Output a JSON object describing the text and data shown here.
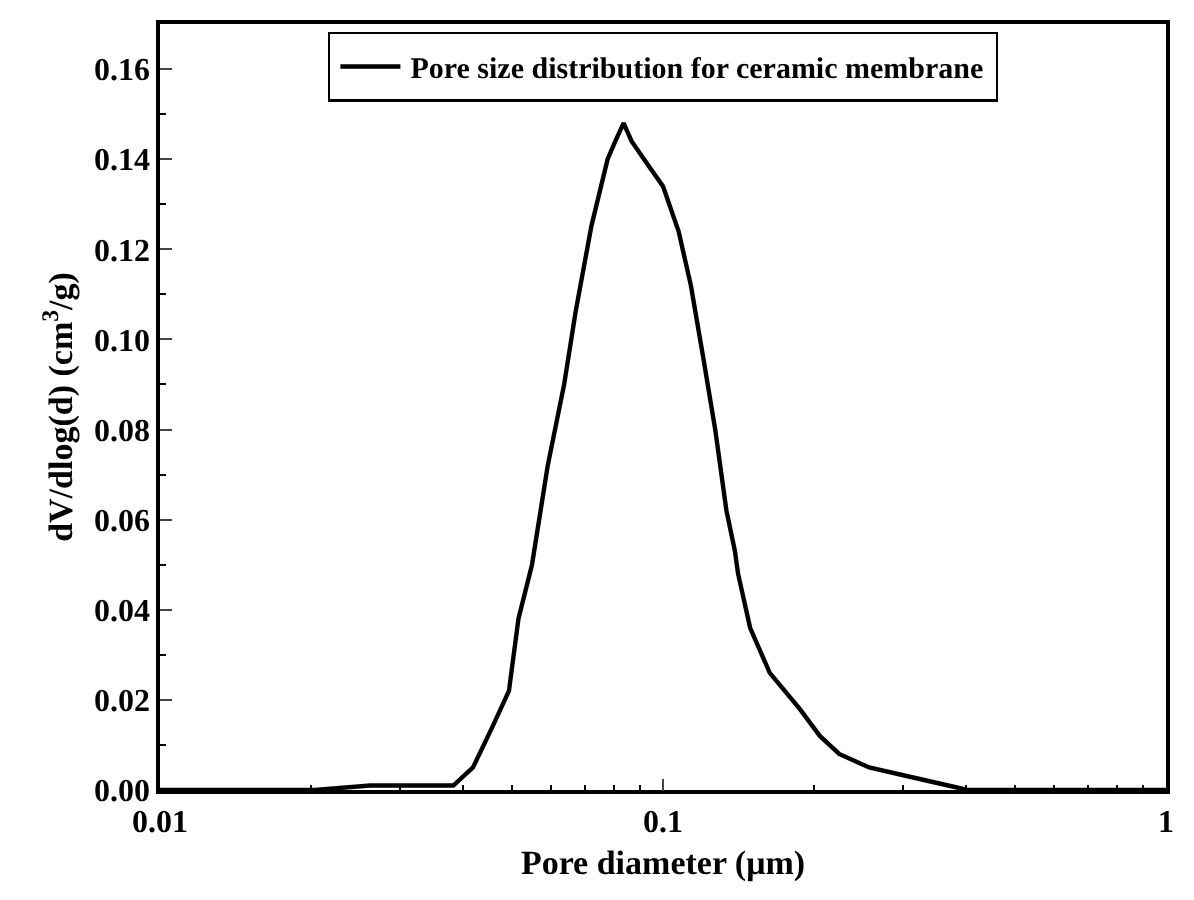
{
  "chart_data": {
    "type": "line",
    "xlabel": "Pore diameter (μm)",
    "ylabel": "dV/dlog(d) (cm$^{3}$/g)",
    "log": "x",
    "xlim": [
      0.01,
      1
    ],
    "xticks": [
      0.01,
      0.1,
      1
    ],
    "ylim": [
      0,
      0.17
    ],
    "yticks": [
      {
        "value": 0,
        "label": "0.00"
      },
      0.02,
      0.04,
      0.06,
      0.08,
      {
        "value": 0.1,
        "label": "0.10"
      },
      0.12,
      0.14,
      0.16
    ],
    "legend": "top",
    "marker": "none",
    "line_style": "solid",
    "series": [
      {
        "name": "Pore size distribution for ceramic membrane",
        "color": "#000000",
        "x": [
          0.01,
          0.0203,
          0.0262,
          0.0383,
          0.0419,
          0.0458,
          0.0494,
          0.0516,
          0.0549,
          0.059,
          0.0636,
          0.067,
          0.072,
          0.0776,
          0.0804,
          0.0835,
          0.0866,
          0.093,
          0.1,
          0.1074,
          0.1136,
          0.1202,
          0.127,
          0.1337,
          0.139,
          0.141,
          0.149,
          0.163,
          0.187,
          0.205,
          0.224,
          0.257,
          0.308,
          0.369,
          0.403,
          1
        ],
        "values": [
          0,
          0,
          0.001,
          0.001,
          0.005,
          0.014,
          0.022,
          0.038,
          0.05,
          0.072,
          0.09,
          0.106,
          0.125,
          0.14,
          0.144,
          0.148,
          0.144,
          0.139,
          0.134,
          0.124,
          0.112,
          0.096,
          0.08,
          0.062,
          0.053,
          0.048,
          0.036,
          0.026,
          0.018,
          0.012,
          0.008,
          0.005,
          0.003,
          0.001,
          0,
          0
        ]
      }
    ]
  }
}
